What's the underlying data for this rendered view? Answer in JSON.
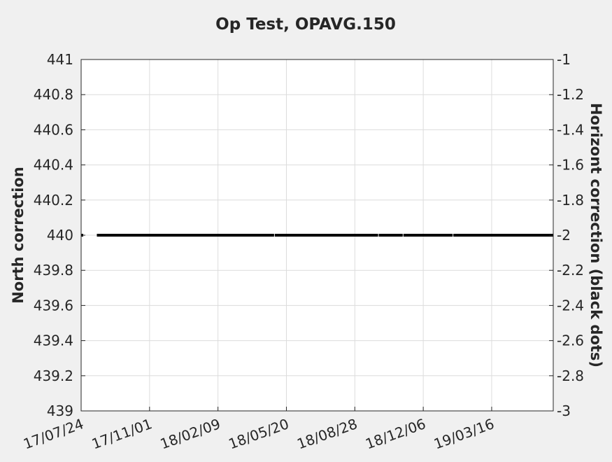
{
  "chart_data": {
    "type": "scatter",
    "title": "Op Test, OPAVG.150",
    "ylabel": "North correction",
    "y2label": "Horizont correction (black dots)",
    "xlabel": "",
    "grid": true,
    "ylim": [
      439,
      441
    ],
    "y2lim": [
      -3,
      -1
    ],
    "yticks": [
      "439",
      "439.2",
      "439.4",
      "439.6",
      "439.8",
      "440",
      "440.2",
      "440.4",
      "440.6",
      "440.8",
      "441"
    ],
    "y2ticks": [
      "-3",
      "-2.8",
      "-2.6",
      "-2.4",
      "-2.2",
      "-2",
      "-1.8",
      "-1.6",
      "-1.4",
      "-1.2",
      "-1"
    ],
    "xlim": [
      "2017-07-24",
      "2019-06-14"
    ],
    "xticks": [
      {
        "date": "2017-07-24",
        "label": "17/07/24"
      },
      {
        "date": "2017-11-01",
        "label": "17/11/01"
      },
      {
        "date": "2018-02-09",
        "label": "18/02/09"
      },
      {
        "date": "2018-05-20",
        "label": "18/05/20"
      },
      {
        "date": "2018-08-28",
        "label": "18/08/28"
      },
      {
        "date": "2018-12-06",
        "label": "18/12/06"
      },
      {
        "date": "2019-03-16",
        "label": "19/03/16"
      }
    ],
    "series": [
      {
        "color": "#000000",
        "axis": "right",
        "y": -2,
        "segments": [
          [
            "2017-07-24",
            "2017-07-27"
          ],
          [
            "2017-08-16",
            "2018-05-02"
          ],
          [
            "2018-05-03",
            "2018-10-01"
          ],
          [
            "2018-10-02",
            "2018-11-06"
          ],
          [
            "2018-11-07",
            "2019-01-18"
          ],
          [
            "2019-01-19",
            "2019-06-14"
          ]
        ]
      }
    ]
  }
}
